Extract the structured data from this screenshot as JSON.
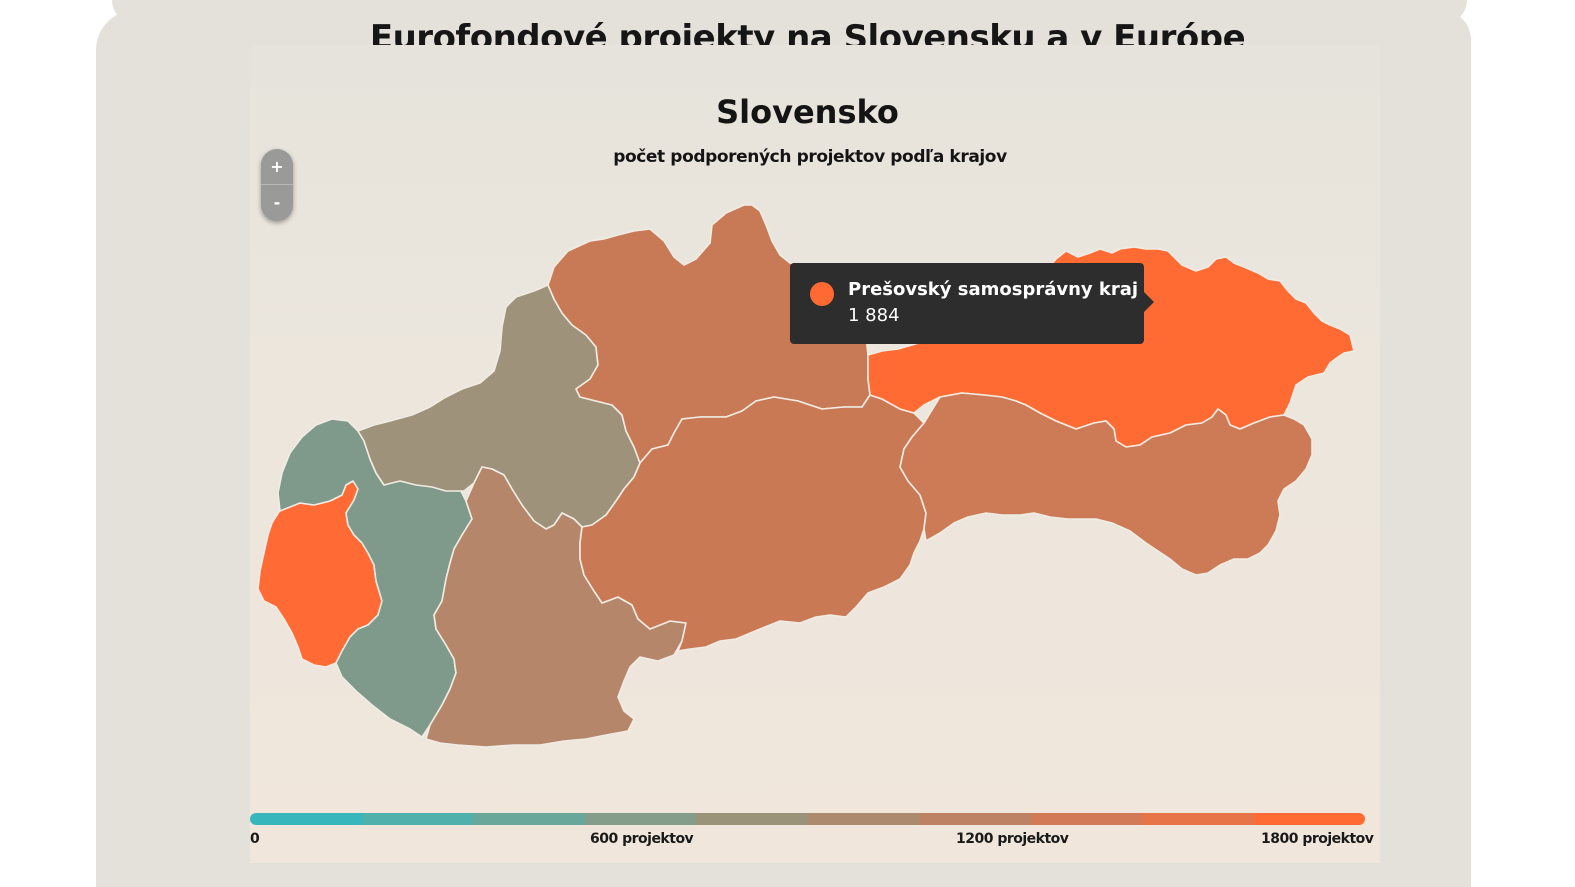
{
  "header": {
    "title": "Eurofondové projekty na Slovensku a v Európe"
  },
  "map": {
    "title": "Slovensko",
    "subtitle": "počet podporených projektov podľa krajov",
    "zoom": {
      "in_label": "+",
      "out_label": "-"
    },
    "regions": [
      {
        "id": "bratislava",
        "color": "#ff6a35"
      },
      {
        "id": "trnava",
        "color": "#7f998a"
      },
      {
        "id": "trencin",
        "color": "#9e927a"
      },
      {
        "id": "nitra",
        "color": "#b5866a"
      },
      {
        "id": "zilina",
        "color": "#c87a56"
      },
      {
        "id": "banska-bystrica",
        "color": "#c97a55"
      },
      {
        "id": "presov",
        "color": "#ff6b33"
      },
      {
        "id": "kosice",
        "color": "#cc7b56"
      }
    ],
    "tooltip": {
      "region_name": "Prešovský samosprávny kraj",
      "value": "1 884",
      "dot_color": "#ff6a33"
    },
    "legend": {
      "labels": [
        "0",
        "600 projektov",
        "1200 projektov",
        "1800 projektov"
      ],
      "colors": [
        "#37b7bb",
        "#4fb0ac",
        "#6aa79b",
        "#849c8a",
        "#9a9279",
        "#ab8a6d",
        "#bd8163",
        "#d17a55",
        "#e77446",
        "#ff6b33"
      ]
    }
  }
}
